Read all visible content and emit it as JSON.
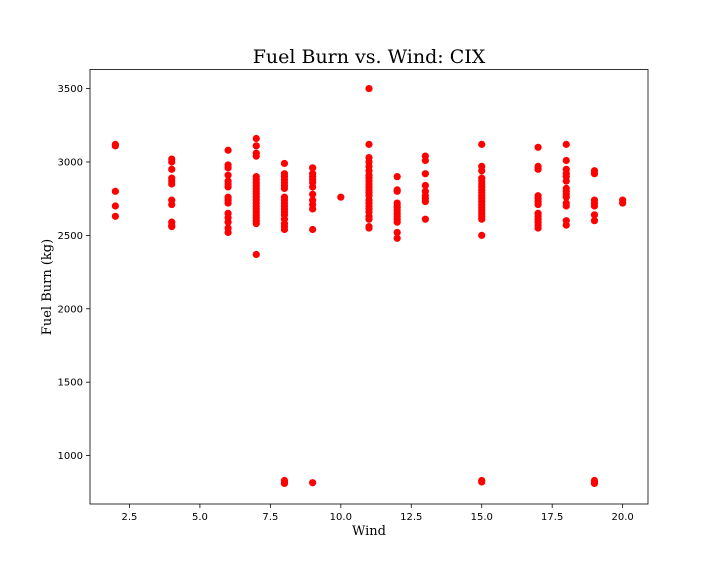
{
  "chart_data": {
    "type": "scatter",
    "title": "Fuel Burn vs. Wind: CIX",
    "xlabel": "Wind",
    "ylabel": "Fuel Burn (kg)",
    "xlim": [
      1.1,
      20.9
    ],
    "ylim": [
      670,
      3630
    ],
    "x_ticks": [
      2.5,
      5.0,
      7.5,
      10.0,
      12.5,
      15.0,
      17.5,
      20.0
    ],
    "x_tick_labels": [
      "2.5",
      "5.0",
      "7.5",
      "10.0",
      "12.5",
      "15.0",
      "17.5",
      "20.0"
    ],
    "y_ticks": [
      1000,
      1500,
      2000,
      2500,
      3000,
      3500
    ],
    "y_tick_labels": [
      "1000",
      "1500",
      "2000",
      "2500",
      "3000",
      "3500"
    ],
    "grid": false,
    "marker_color": "#ff0000",
    "points": [
      {
        "x": 2,
        "y": 3120
      },
      {
        "x": 2,
        "y": 3110
      },
      {
        "x": 2,
        "y": 2800
      },
      {
        "x": 2,
        "y": 2700
      },
      {
        "x": 2,
        "y": 2630
      },
      {
        "x": 4,
        "y": 3020
      },
      {
        "x": 4,
        "y": 3000
      },
      {
        "x": 4,
        "y": 2950
      },
      {
        "x": 4,
        "y": 2890
      },
      {
        "x": 4,
        "y": 2870
      },
      {
        "x": 4,
        "y": 2850
      },
      {
        "x": 4,
        "y": 2740
      },
      {
        "x": 4,
        "y": 2710
      },
      {
        "x": 4,
        "y": 2590
      },
      {
        "x": 4,
        "y": 2570
      },
      {
        "x": 4,
        "y": 2560
      },
      {
        "x": 6,
        "y": 3080
      },
      {
        "x": 6,
        "y": 2980
      },
      {
        "x": 6,
        "y": 2960
      },
      {
        "x": 6,
        "y": 2910
      },
      {
        "x": 6,
        "y": 2870
      },
      {
        "x": 6,
        "y": 2850
      },
      {
        "x": 6,
        "y": 2830
      },
      {
        "x": 6,
        "y": 2760
      },
      {
        "x": 6,
        "y": 2740
      },
      {
        "x": 6,
        "y": 2720
      },
      {
        "x": 6,
        "y": 2650
      },
      {
        "x": 6,
        "y": 2620
      },
      {
        "x": 6,
        "y": 2590
      },
      {
        "x": 6,
        "y": 2550
      },
      {
        "x": 6,
        "y": 2520
      },
      {
        "x": 7,
        "y": 3160
      },
      {
        "x": 7,
        "y": 3110
      },
      {
        "x": 7,
        "y": 3060
      },
      {
        "x": 7,
        "y": 3040
      },
      {
        "x": 7,
        "y": 2900
      },
      {
        "x": 7,
        "y": 2880
      },
      {
        "x": 7,
        "y": 2860
      },
      {
        "x": 7,
        "y": 2840
      },
      {
        "x": 7,
        "y": 2820
      },
      {
        "x": 7,
        "y": 2800
      },
      {
        "x": 7,
        "y": 2780
      },
      {
        "x": 7,
        "y": 2760
      },
      {
        "x": 7,
        "y": 2740
      },
      {
        "x": 7,
        "y": 2720
      },
      {
        "x": 7,
        "y": 2700
      },
      {
        "x": 7,
        "y": 2680
      },
      {
        "x": 7,
        "y": 2660
      },
      {
        "x": 7,
        "y": 2640
      },
      {
        "x": 7,
        "y": 2620
      },
      {
        "x": 7,
        "y": 2600
      },
      {
        "x": 7,
        "y": 2580
      },
      {
        "x": 7,
        "y": 2370
      },
      {
        "x": 8,
        "y": 2990
      },
      {
        "x": 8,
        "y": 2920
      },
      {
        "x": 8,
        "y": 2900
      },
      {
        "x": 8,
        "y": 2880
      },
      {
        "x": 8,
        "y": 2860
      },
      {
        "x": 8,
        "y": 2840
      },
      {
        "x": 8,
        "y": 2820
      },
      {
        "x": 8,
        "y": 2760
      },
      {
        "x": 8,
        "y": 2740
      },
      {
        "x": 8,
        "y": 2720
      },
      {
        "x": 8,
        "y": 2700
      },
      {
        "x": 8,
        "y": 2680
      },
      {
        "x": 8,
        "y": 2660
      },
      {
        "x": 8,
        "y": 2640
      },
      {
        "x": 8,
        "y": 2610
      },
      {
        "x": 8,
        "y": 2580
      },
      {
        "x": 8,
        "y": 2560
      },
      {
        "x": 8,
        "y": 2540
      },
      {
        "x": 8,
        "y": 830
      },
      {
        "x": 8,
        "y": 820
      },
      {
        "x": 8,
        "y": 810
      },
      {
        "x": 9,
        "y": 2960
      },
      {
        "x": 9,
        "y": 2920
      },
      {
        "x": 9,
        "y": 2900
      },
      {
        "x": 9,
        "y": 2880
      },
      {
        "x": 9,
        "y": 2860
      },
      {
        "x": 9,
        "y": 2830
      },
      {
        "x": 9,
        "y": 2780
      },
      {
        "x": 9,
        "y": 2740
      },
      {
        "x": 9,
        "y": 2710
      },
      {
        "x": 9,
        "y": 2680
      },
      {
        "x": 9,
        "y": 2540
      },
      {
        "x": 9,
        "y": 815
      },
      {
        "x": 10,
        "y": 2760
      },
      {
        "x": 11,
        "y": 3500
      },
      {
        "x": 11,
        "y": 3120
      },
      {
        "x": 11,
        "y": 3030
      },
      {
        "x": 11,
        "y": 3000
      },
      {
        "x": 11,
        "y": 2970
      },
      {
        "x": 11,
        "y": 2940
      },
      {
        "x": 11,
        "y": 2910
      },
      {
        "x": 11,
        "y": 2890
      },
      {
        "x": 11,
        "y": 2870
      },
      {
        "x": 11,
        "y": 2850
      },
      {
        "x": 11,
        "y": 2830
      },
      {
        "x": 11,
        "y": 2810
      },
      {
        "x": 11,
        "y": 2790
      },
      {
        "x": 11,
        "y": 2770
      },
      {
        "x": 11,
        "y": 2740
      },
      {
        "x": 11,
        "y": 2720
      },
      {
        "x": 11,
        "y": 2700
      },
      {
        "x": 11,
        "y": 2680
      },
      {
        "x": 11,
        "y": 2660
      },
      {
        "x": 11,
        "y": 2630
      },
      {
        "x": 11,
        "y": 2610
      },
      {
        "x": 11,
        "y": 2560
      },
      {
        "x": 11,
        "y": 2550
      },
      {
        "x": 12,
        "y": 2900
      },
      {
        "x": 12,
        "y": 2810
      },
      {
        "x": 12,
        "y": 2800
      },
      {
        "x": 12,
        "y": 2720
      },
      {
        "x": 12,
        "y": 2700
      },
      {
        "x": 12,
        "y": 2690
      },
      {
        "x": 12,
        "y": 2670
      },
      {
        "x": 12,
        "y": 2650
      },
      {
        "x": 12,
        "y": 2630
      },
      {
        "x": 12,
        "y": 2610
      },
      {
        "x": 12,
        "y": 2590
      },
      {
        "x": 12,
        "y": 2520
      },
      {
        "x": 12,
        "y": 2480
      },
      {
        "x": 13,
        "y": 3040
      },
      {
        "x": 13,
        "y": 3010
      },
      {
        "x": 13,
        "y": 2920
      },
      {
        "x": 13,
        "y": 2840
      },
      {
        "x": 13,
        "y": 2800
      },
      {
        "x": 13,
        "y": 2770
      },
      {
        "x": 13,
        "y": 2750
      },
      {
        "x": 13,
        "y": 2730
      },
      {
        "x": 13,
        "y": 2610
      },
      {
        "x": 15,
        "y": 3120
      },
      {
        "x": 15,
        "y": 2970
      },
      {
        "x": 15,
        "y": 2940
      },
      {
        "x": 15,
        "y": 2890
      },
      {
        "x": 15,
        "y": 2870
      },
      {
        "x": 15,
        "y": 2850
      },
      {
        "x": 15,
        "y": 2830
      },
      {
        "x": 15,
        "y": 2810
      },
      {
        "x": 15,
        "y": 2790
      },
      {
        "x": 15,
        "y": 2770
      },
      {
        "x": 15,
        "y": 2750
      },
      {
        "x": 15,
        "y": 2730
      },
      {
        "x": 15,
        "y": 2710
      },
      {
        "x": 15,
        "y": 2690
      },
      {
        "x": 15,
        "y": 2670
      },
      {
        "x": 15,
        "y": 2650
      },
      {
        "x": 15,
        "y": 2630
      },
      {
        "x": 15,
        "y": 2610
      },
      {
        "x": 15,
        "y": 2500
      },
      {
        "x": 15,
        "y": 830
      },
      {
        "x": 15,
        "y": 820
      },
      {
        "x": 17,
        "y": 3100
      },
      {
        "x": 17,
        "y": 2970
      },
      {
        "x": 17,
        "y": 2950
      },
      {
        "x": 17,
        "y": 2770
      },
      {
        "x": 17,
        "y": 2750
      },
      {
        "x": 17,
        "y": 2730
      },
      {
        "x": 17,
        "y": 2710
      },
      {
        "x": 17,
        "y": 2650
      },
      {
        "x": 17,
        "y": 2630
      },
      {
        "x": 17,
        "y": 2610
      },
      {
        "x": 17,
        "y": 2590
      },
      {
        "x": 17,
        "y": 2570
      },
      {
        "x": 17,
        "y": 2550
      },
      {
        "x": 18,
        "y": 3120
      },
      {
        "x": 18,
        "y": 3010
      },
      {
        "x": 18,
        "y": 2950
      },
      {
        "x": 18,
        "y": 2920
      },
      {
        "x": 18,
        "y": 2900
      },
      {
        "x": 18,
        "y": 2870
      },
      {
        "x": 18,
        "y": 2820
      },
      {
        "x": 18,
        "y": 2800
      },
      {
        "x": 18,
        "y": 2780
      },
      {
        "x": 18,
        "y": 2760
      },
      {
        "x": 18,
        "y": 2720
      },
      {
        "x": 18,
        "y": 2700
      },
      {
        "x": 18,
        "y": 2600
      },
      {
        "x": 18,
        "y": 2570
      },
      {
        "x": 19,
        "y": 2940
      },
      {
        "x": 19,
        "y": 2920
      },
      {
        "x": 19,
        "y": 2740
      },
      {
        "x": 19,
        "y": 2720
      },
      {
        "x": 19,
        "y": 2700
      },
      {
        "x": 19,
        "y": 2640
      },
      {
        "x": 19,
        "y": 2600
      },
      {
        "x": 19,
        "y": 830
      },
      {
        "x": 19,
        "y": 820
      },
      {
        "x": 19,
        "y": 810
      },
      {
        "x": 20,
        "y": 2740
      },
      {
        "x": 20,
        "y": 2720
      }
    ]
  }
}
